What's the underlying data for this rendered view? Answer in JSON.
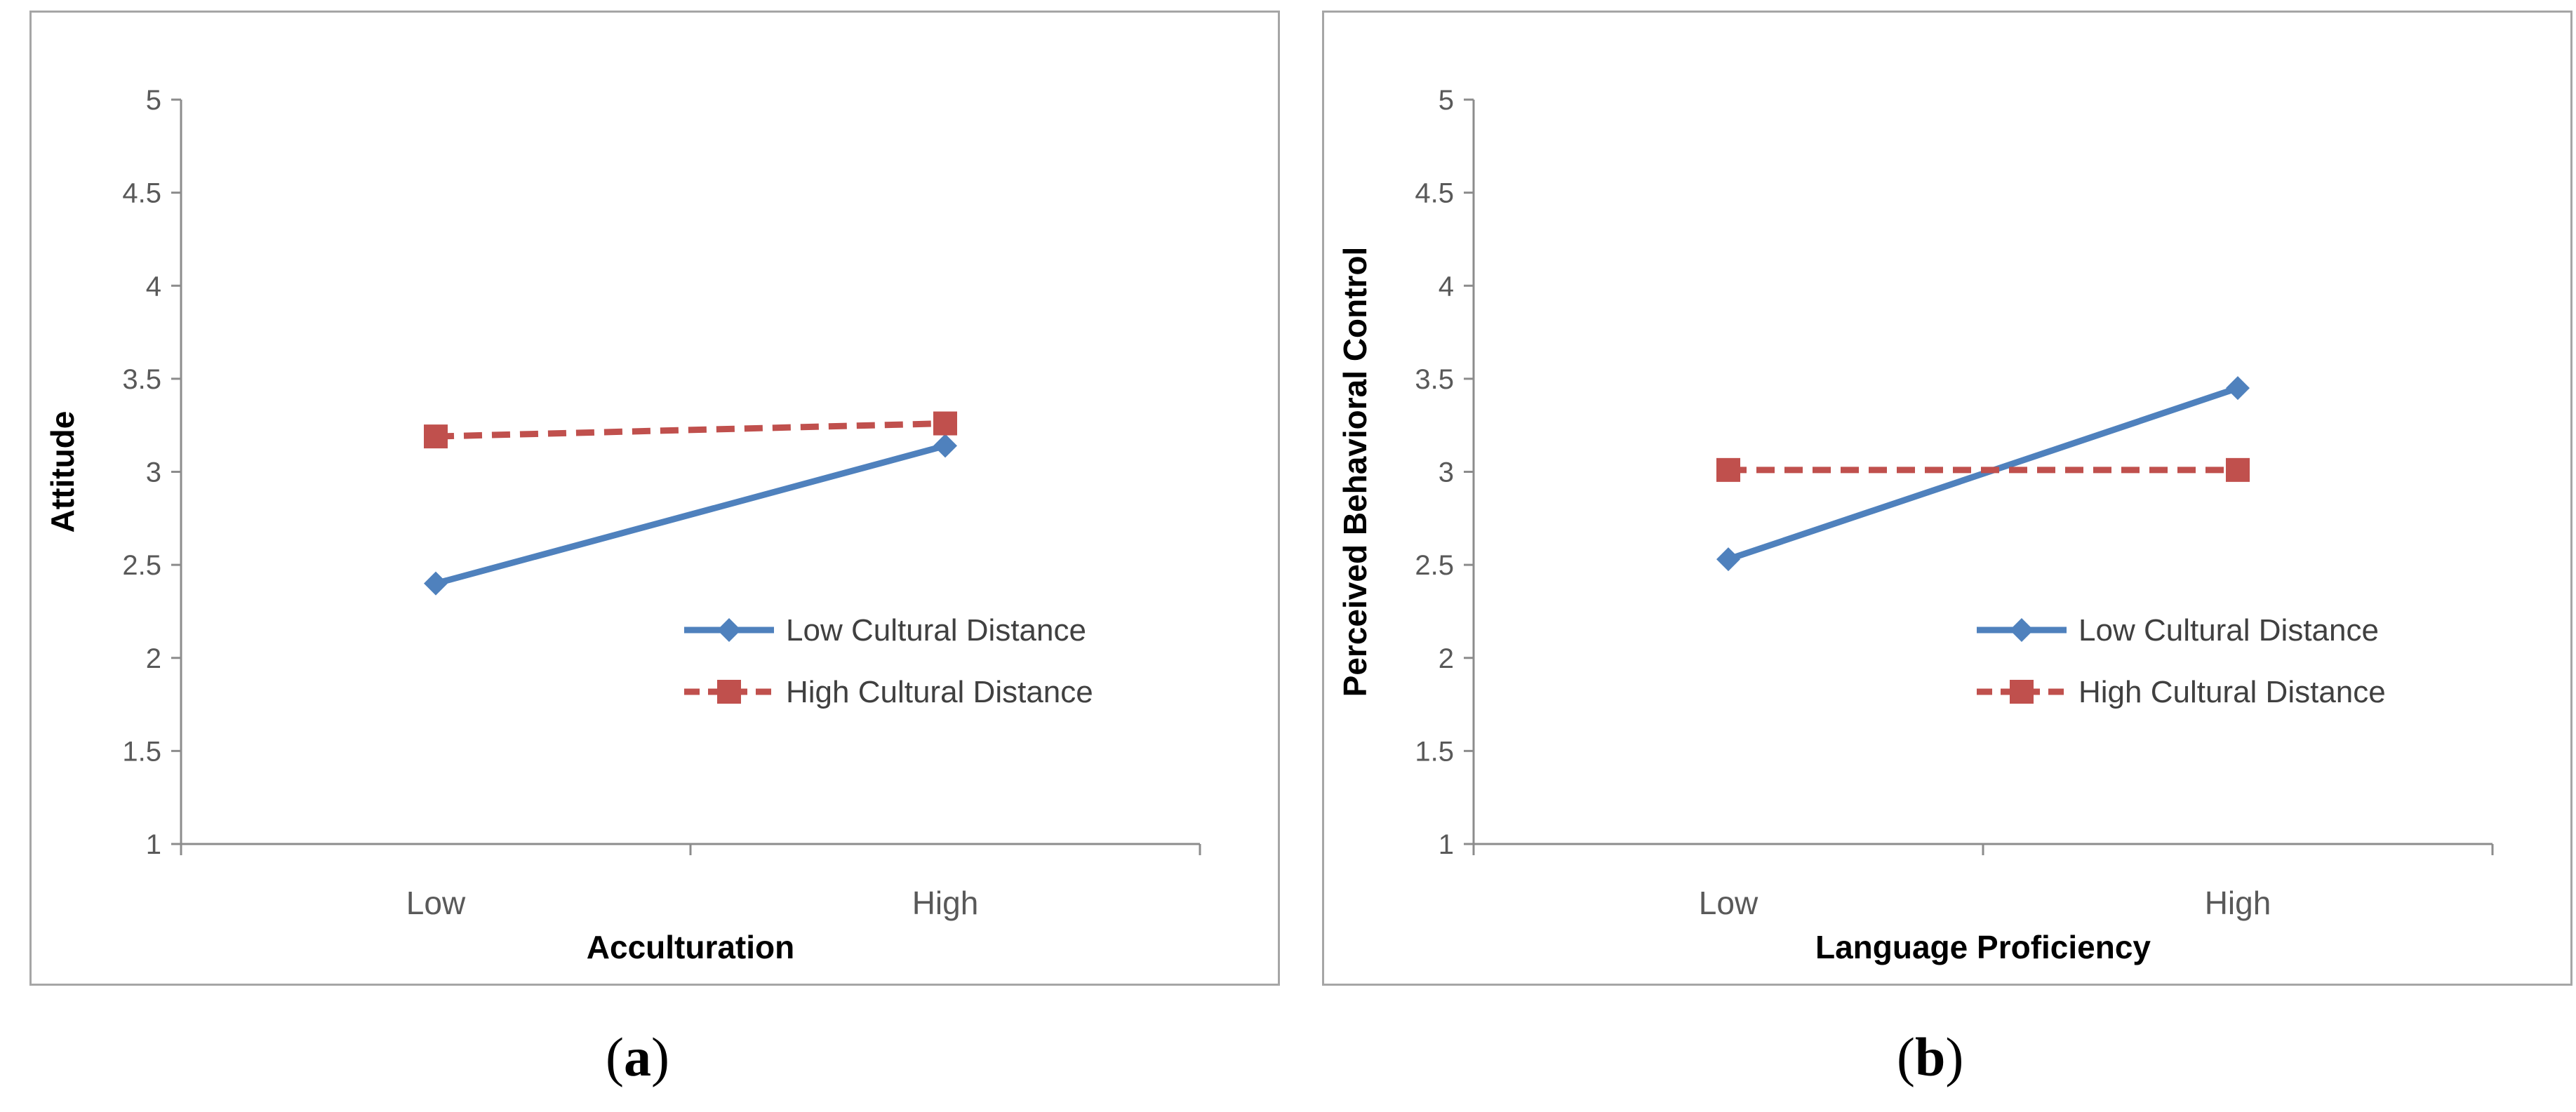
{
  "chart_data": [
    {
      "type": "line",
      "title": "",
      "xlabel": "Acculturation",
      "ylabel": "Attitude",
      "categories": [
        "Low",
        "High"
      ],
      "ylim": [
        1,
        5
      ],
      "yticks": [
        "1",
        "1.5",
        "2",
        "2.5",
        "3",
        "3.5",
        "4",
        "4.5",
        "5"
      ],
      "grid": false,
      "legend_position": "bottom-right",
      "series": [
        {
          "name": "Low Cultural Distance",
          "values": [
            2.4,
            3.14
          ],
          "color": "#4f81bd",
          "line_style": "solid",
          "marker": "diamond"
        },
        {
          "name": "High Cultural Distance",
          "values": [
            3.19,
            3.26
          ],
          "color": "#c0504d",
          "line_style": "dashed",
          "marker": "square"
        }
      ],
      "caption": "a"
    },
    {
      "type": "line",
      "title": "",
      "xlabel": "Language Proficiency",
      "ylabel": "Perceived Behavioral Control",
      "categories": [
        "Low",
        "High"
      ],
      "ylim": [
        1,
        5
      ],
      "yticks": [
        "1",
        "1.5",
        "2",
        "2.5",
        "3",
        "3.5",
        "4",
        "4.5",
        "5"
      ],
      "grid": false,
      "legend_position": "bottom-right",
      "series": [
        {
          "name": "Low Cultural Distance",
          "values": [
            2.53,
            3.45
          ],
          "color": "#4f81bd",
          "line_style": "solid",
          "marker": "diamond"
        },
        {
          "name": "High Cultural Distance",
          "values": [
            3.01,
            3.01
          ],
          "color": "#c0504d",
          "line_style": "dashed",
          "marker": "square"
        }
      ],
      "caption": "b"
    }
  ]
}
